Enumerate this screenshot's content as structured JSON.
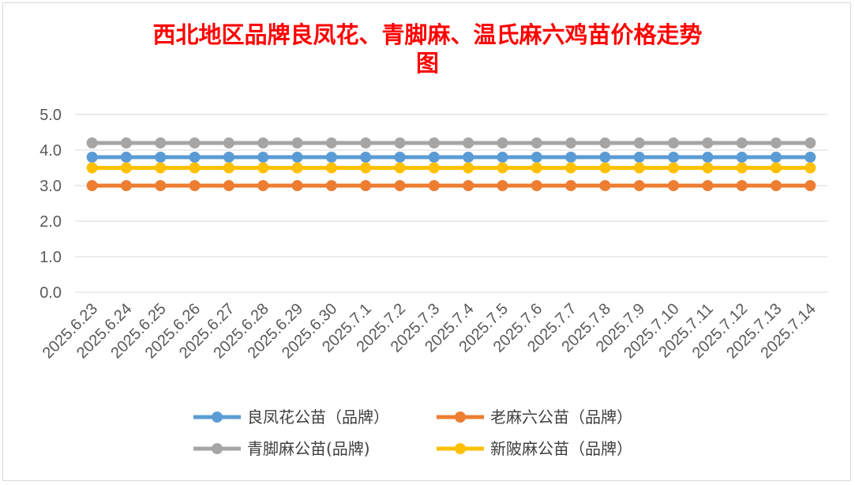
{
  "chart_data": {
    "type": "line",
    "title_lines": [
      "西北地区品牌良凤花、青脚麻、温氏麻六鸡苗价格走势",
      "图"
    ],
    "xlabel": "",
    "ylabel": "",
    "ylim": [
      0,
      5
    ],
    "yticks": [
      "0.0",
      "1.0",
      "2.0",
      "3.0",
      "4.0",
      "5.0"
    ],
    "ytick_values": [
      0,
      1,
      2,
      3,
      4,
      5
    ],
    "grid": true,
    "legend_position": "bottom",
    "categories": [
      "2025.6.23",
      "2025.6.24",
      "2025.6.25",
      "2025.6.26",
      "2025.6.27",
      "2025.6.28",
      "2025.6.29",
      "2025.6.30",
      "2025.7.1",
      "2025.7.2",
      "2025.7.3",
      "2025.7.4",
      "2025.7.5",
      "2025.7.6",
      "2025.7.7",
      "2025.7.8",
      "2025.7.9",
      "2025.7.10",
      "2025.7.11",
      "2025.7.12",
      "2025.7.13",
      "2025.7.14"
    ],
    "series": [
      {
        "name": "良凤花公苗（品牌）",
        "color": "#5b9bd5",
        "values": [
          3.8,
          3.8,
          3.8,
          3.8,
          3.8,
          3.8,
          3.8,
          3.8,
          3.8,
          3.8,
          3.8,
          3.8,
          3.8,
          3.8,
          3.8,
          3.8,
          3.8,
          3.8,
          3.8,
          3.8,
          3.8,
          3.8
        ]
      },
      {
        "name": "老麻六公苗（品牌）",
        "color": "#ed7d31",
        "values": [
          3.0,
          3.0,
          3.0,
          3.0,
          3.0,
          3.0,
          3.0,
          3.0,
          3.0,
          3.0,
          3.0,
          3.0,
          3.0,
          3.0,
          3.0,
          3.0,
          3.0,
          3.0,
          3.0,
          3.0,
          3.0,
          3.0
        ]
      },
      {
        "name": "青脚麻公苗(品牌)",
        "color": "#a5a5a5",
        "values": [
          4.2,
          4.2,
          4.2,
          4.2,
          4.2,
          4.2,
          4.2,
          4.2,
          4.2,
          4.2,
          4.2,
          4.2,
          4.2,
          4.2,
          4.2,
          4.2,
          4.2,
          4.2,
          4.2,
          4.2,
          4.2,
          4.2
        ]
      },
      {
        "name": "新陂麻公苗（品牌）",
        "color": "#ffc000",
        "values": [
          3.5,
          3.5,
          3.5,
          3.5,
          3.5,
          3.5,
          3.5,
          3.5,
          3.5,
          3.5,
          3.5,
          3.5,
          3.5,
          3.5,
          3.5,
          3.5,
          3.5,
          3.5,
          3.5,
          3.5,
          3.5,
          3.5
        ]
      }
    ],
    "gridline_color": "#d9d9d9",
    "title_color": "#ff0000"
  }
}
